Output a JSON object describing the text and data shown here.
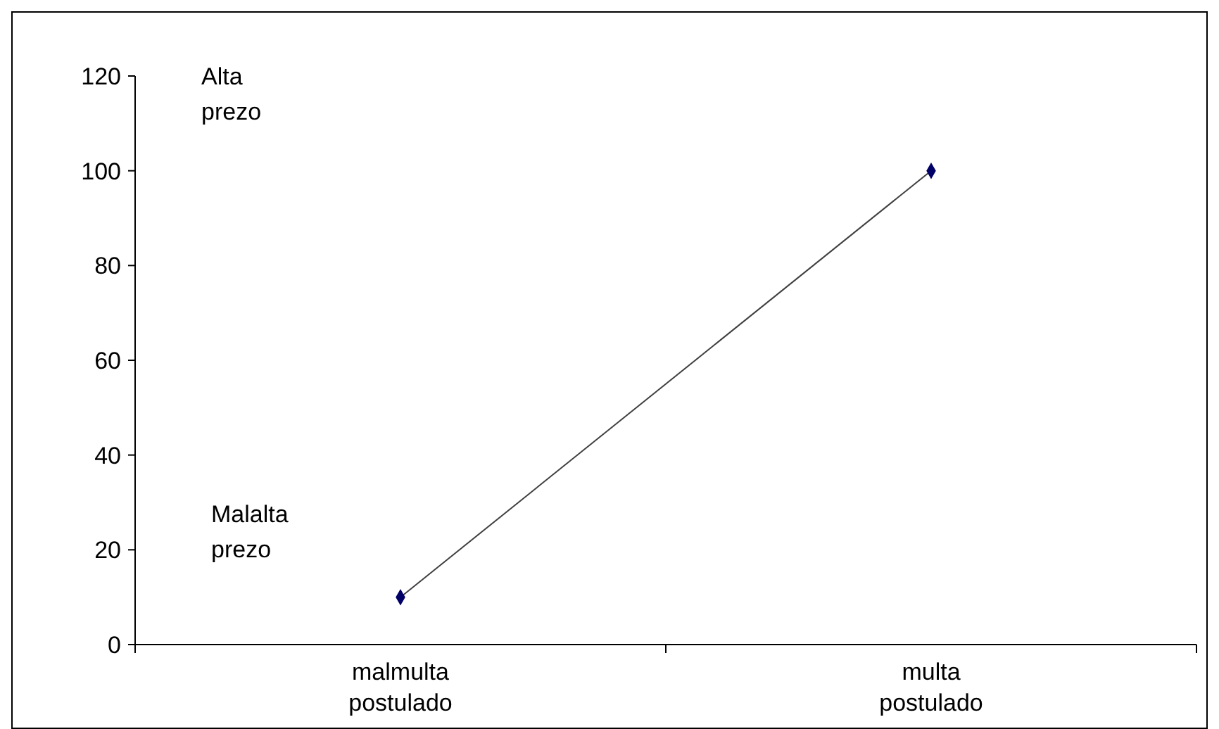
{
  "chart_data": {
    "type": "line",
    "categories": [
      "malmulta postulado",
      "multa postulado"
    ],
    "series": [
      {
        "color": "#000066",
        "values": [
          10,
          100
        ]
      }
    ],
    "ylim": [
      0,
      120
    ],
    "yticks": [
      0,
      20,
      40,
      60,
      80,
      100,
      120
    ],
    "grid": false,
    "marker": "diamond",
    "line_style": "solid",
    "annotations": [
      "Alta prezo",
      "Malalta prezo"
    ]
  }
}
